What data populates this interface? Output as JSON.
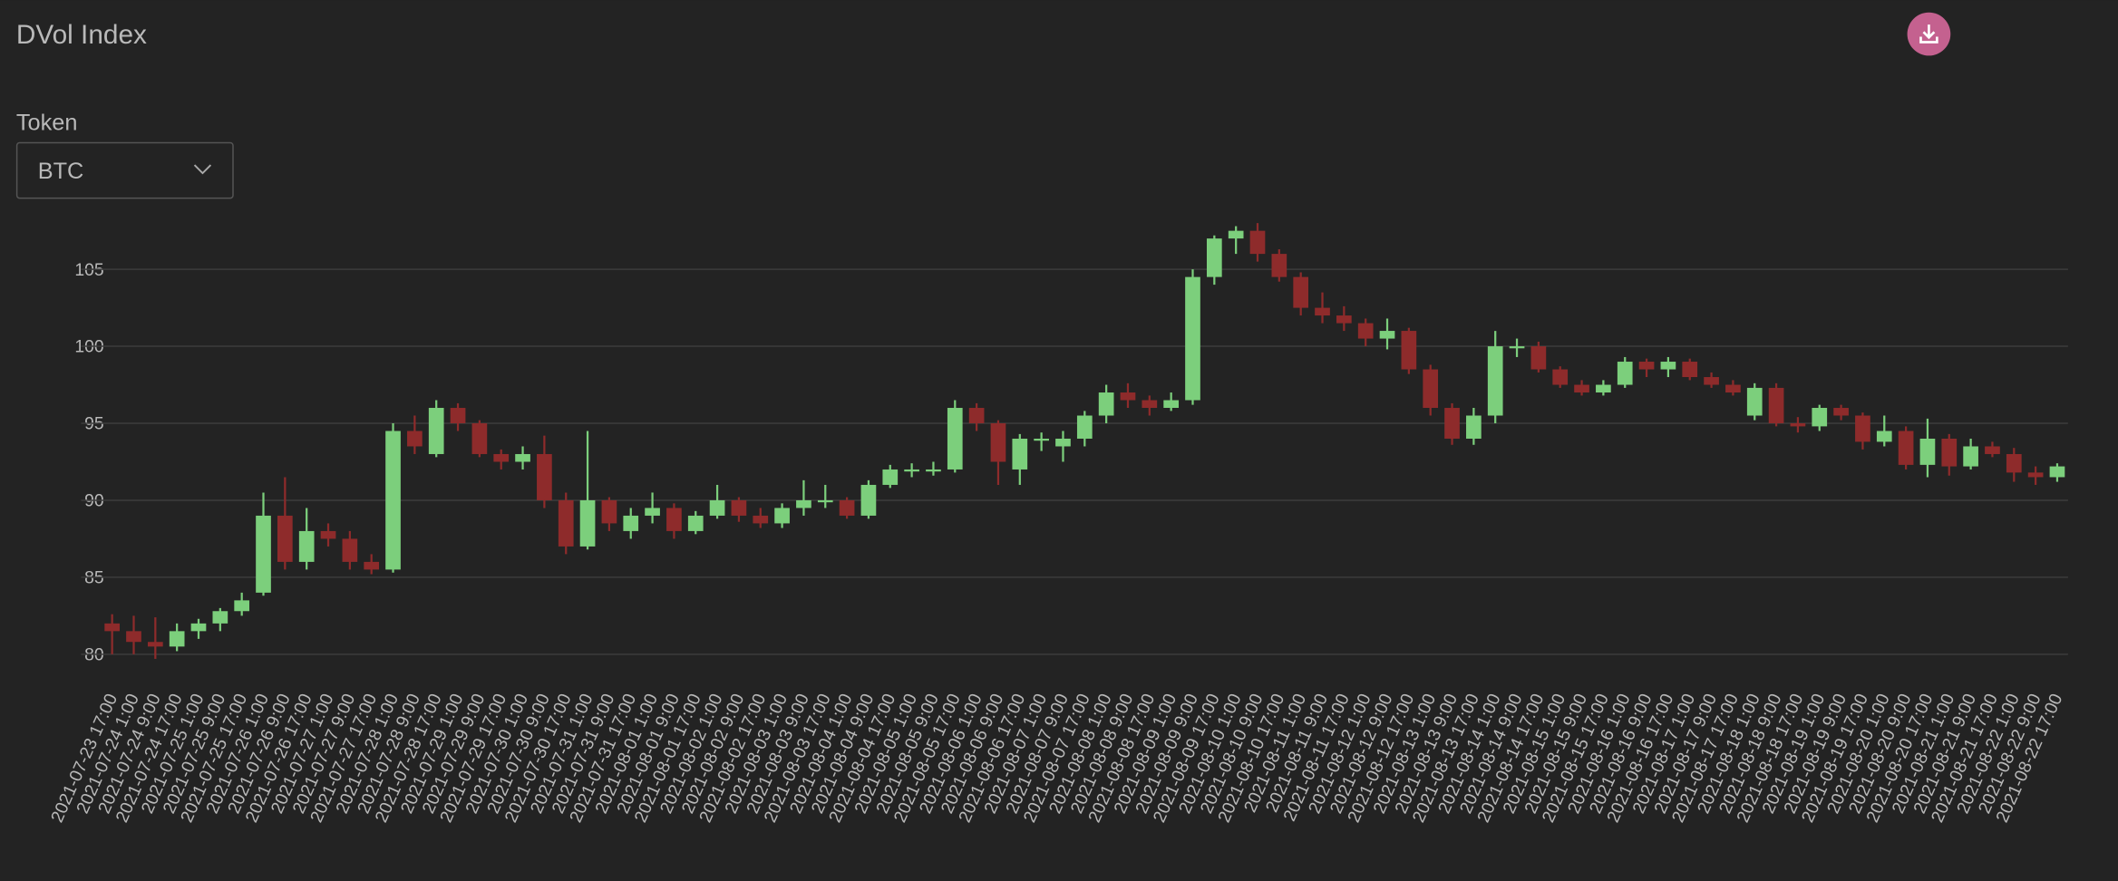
{
  "header": {
    "title": "DVol Index"
  },
  "controls": {
    "token_label": "Token",
    "token_value": "BTC"
  },
  "chart_data": {
    "type": "candlestick",
    "up_color": "#7ccf7c",
    "down_color": "#8e2b2b",
    "grid": true,
    "ylim": [
      79.5,
      108
    ],
    "yticks": [
      80,
      85,
      90,
      95,
      100,
      105
    ],
    "categories": [
      "2021-07-23 17:00",
      "2021-07-24 1:00",
      "2021-07-24 9:00",
      "2021-07-24 17:00",
      "2021-07-25 1:00",
      "2021-07-25 9:00",
      "2021-07-25 17:00",
      "2021-07-26 1:00",
      "2021-07-26 9:00",
      "2021-07-26 17:00",
      "2021-07-27 1:00",
      "2021-07-27 9:00",
      "2021-07-27 17:00",
      "2021-07-28 1:00",
      "2021-07-28 9:00",
      "2021-07-28 17:00",
      "2021-07-29 1:00",
      "2021-07-29 9:00",
      "2021-07-29 17:00",
      "2021-07-30 1:00",
      "2021-07-30 9:00",
      "2021-07-30 17:00",
      "2021-07-31 1:00",
      "2021-07-31 9:00",
      "2021-07-31 17:00",
      "2021-08-01 1:00",
      "2021-08-01 9:00",
      "2021-08-01 17:00",
      "2021-08-02 1:00",
      "2021-08-02 9:00",
      "2021-08-02 17:00",
      "2021-08-03 1:00",
      "2021-08-03 9:00",
      "2021-08-03 17:00",
      "2021-08-04 1:00",
      "2021-08-04 9:00",
      "2021-08-04 17:00",
      "2021-08-05 1:00",
      "2021-08-05 9:00",
      "2021-08-05 17:00",
      "2021-08-06 1:00",
      "2021-08-06 9:00",
      "2021-08-06 17:00",
      "2021-08-07 1:00",
      "2021-08-07 9:00",
      "2021-08-07 17:00",
      "2021-08-08 1:00",
      "2021-08-08 9:00",
      "2021-08-08 17:00",
      "2021-08-09 1:00",
      "2021-08-09 9:00",
      "2021-08-09 17:00",
      "2021-08-10 1:00",
      "2021-08-10 9:00",
      "2021-08-10 17:00",
      "2021-08-11 1:00",
      "2021-08-11 9:00",
      "2021-08-11 17:00",
      "2021-08-12 1:00",
      "2021-08-12 9:00",
      "2021-08-12 17:00",
      "2021-08-13 1:00",
      "2021-08-13 9:00",
      "2021-08-13 17:00",
      "2021-08-14 1:00",
      "2021-08-14 9:00",
      "2021-08-14 17:00",
      "2021-08-15 1:00",
      "2021-08-15 9:00",
      "2021-08-15 17:00",
      "2021-08-16 1:00",
      "2021-08-16 9:00",
      "2021-08-16 17:00",
      "2021-08-17 1:00",
      "2021-08-17 9:00",
      "2021-08-17 17:00",
      "2021-08-18 1:00",
      "2021-08-18 9:00",
      "2021-08-18 17:00",
      "2021-08-19 1:00",
      "2021-08-19 9:00",
      "2021-08-19 17:00",
      "2021-08-20 1:00",
      "2021-08-20 9:00",
      "2021-08-20 17:00",
      "2021-08-21 1:00",
      "2021-08-21 9:00",
      "2021-08-21 17:00",
      "2021-08-22 1:00",
      "2021-08-22 9:00",
      "2021-08-22 17:00"
    ],
    "ohlc": [
      [
        82,
        82.6,
        80,
        81.5
      ],
      [
        81.5,
        82.5,
        80,
        80.8
      ],
      [
        80.8,
        82.4,
        79.7,
        80.5
      ],
      [
        80.5,
        82,
        80.2,
        81.5
      ],
      [
        81.5,
        82.3,
        81,
        82
      ],
      [
        82,
        83,
        81.5,
        82.8
      ],
      [
        82.8,
        84,
        82.5,
        83.5
      ],
      [
        84,
        90.5,
        83.8,
        89
      ],
      [
        89,
        91.5,
        85.5,
        86
      ],
      [
        86,
        89.5,
        85.5,
        88
      ],
      [
        88,
        88.5,
        87,
        87.5
      ],
      [
        87.5,
        88,
        85.5,
        86
      ],
      [
        86,
        86.5,
        85.2,
        85.5
      ],
      [
        85.5,
        95,
        85.3,
        94.5
      ],
      [
        94.5,
        95.5,
        93,
        93.5
      ],
      [
        93,
        96.5,
        92.8,
        96
      ],
      [
        96,
        96.3,
        94.5,
        95
      ],
      [
        95,
        95.2,
        92.8,
        93
      ],
      [
        93,
        93.3,
        92,
        92.5
      ],
      [
        92.5,
        93.5,
        92,
        93
      ],
      [
        93,
        94.2,
        89.5,
        90
      ],
      [
        90,
        90.5,
        86.5,
        87
      ],
      [
        87,
        94.5,
        86.8,
        90
      ],
      [
        90,
        90.2,
        88,
        88.5
      ],
      [
        88,
        89.5,
        87.5,
        89
      ],
      [
        89,
        90.5,
        88.5,
        89.5
      ],
      [
        89.5,
        89.8,
        87.5,
        88
      ],
      [
        88,
        89.3,
        87.8,
        89
      ],
      [
        89,
        91,
        88.8,
        90
      ],
      [
        90,
        90.2,
        88.6,
        89
      ],
      [
        89,
        89.5,
        88.2,
        88.5
      ],
      [
        88.5,
        89.8,
        88.2,
        89.5
      ],
      [
        89.5,
        91.3,
        89,
        90
      ],
      [
        90,
        91,
        89.5,
        90
      ],
      [
        90,
        90.2,
        88.8,
        89
      ],
      [
        89,
        91.3,
        88.8,
        91
      ],
      [
        91,
        92.3,
        90.8,
        92
      ],
      [
        92,
        92.4,
        91.5,
        92
      ],
      [
        92,
        92.5,
        91.6,
        92
      ],
      [
        92,
        96.5,
        91.8,
        96
      ],
      [
        96,
        96.3,
        94.5,
        95
      ],
      [
        95,
        95.2,
        91,
        92.5
      ],
      [
        92,
        94.3,
        91,
        94
      ],
      [
        94,
        94.4,
        93.2,
        94
      ],
      [
        93.5,
        94.5,
        92.5,
        94
      ],
      [
        94,
        95.8,
        93.5,
        95.5
      ],
      [
        95.5,
        97.5,
        95,
        97
      ],
      [
        97,
        97.6,
        96,
        96.5
      ],
      [
        96.5,
        96.8,
        95.5,
        96
      ],
      [
        96,
        97,
        95.8,
        96.5
      ],
      [
        96.5,
        105,
        96.2,
        104.5
      ],
      [
        104.5,
        107.2,
        104,
        107
      ],
      [
        107,
        107.8,
        106,
        107.5
      ],
      [
        107.5,
        108,
        105.5,
        106
      ],
      [
        106,
        106.3,
        104.2,
        104.5
      ],
      [
        104.5,
        104.8,
        102,
        102.5
      ],
      [
        102.5,
        103.5,
        101.5,
        102
      ],
      [
        102,
        102.6,
        101,
        101.5
      ],
      [
        101.5,
        101.8,
        100,
        100.5
      ],
      [
        100.5,
        101.8,
        99.8,
        101
      ],
      [
        101,
        101.2,
        98.2,
        98.5
      ],
      [
        98.5,
        98.8,
        95.5,
        96
      ],
      [
        96,
        96.3,
        93.6,
        94
      ],
      [
        94,
        96,
        93.6,
        95.5
      ],
      [
        95.5,
        101,
        95,
        100
      ],
      [
        100,
        100.5,
        99.3,
        100
      ],
      [
        100,
        100.3,
        98.3,
        98.5
      ],
      [
        98.5,
        98.7,
        97.3,
        97.5
      ],
      [
        97.5,
        97.8,
        96.8,
        97
      ],
      [
        97,
        97.8,
        96.8,
        97.5
      ],
      [
        97.5,
        99.3,
        97.3,
        99
      ],
      [
        99,
        99.2,
        98,
        98.5
      ],
      [
        98.5,
        99.3,
        98,
        99
      ],
      [
        99,
        99.2,
        97.8,
        98
      ],
      [
        98,
        98.3,
        97.3,
        97.5
      ],
      [
        97.5,
        97.8,
        96.8,
        97
      ],
      [
        95.5,
        97.6,
        95.2,
        97.3
      ],
      [
        97.3,
        97.6,
        94.8,
        95
      ],
      [
        95,
        95.4,
        94.4,
        94.8
      ],
      [
        94.8,
        96.2,
        94.5,
        96
      ],
      [
        96,
        96.2,
        95.2,
        95.5
      ],
      [
        95.5,
        95.7,
        93.3,
        93.8
      ],
      [
        93.8,
        95.5,
        93.5,
        94.5
      ],
      [
        94.5,
        94.8,
        92,
        92.3
      ],
      [
        92.3,
        95.3,
        91.5,
        94
      ],
      [
        94,
        94.3,
        91.6,
        92.2
      ],
      [
        92.2,
        94,
        92,
        93.5
      ],
      [
        93.5,
        93.8,
        92.8,
        93
      ],
      [
        93,
        93.4,
        91.2,
        91.8
      ],
      [
        91.8,
        92.2,
        91,
        91.5
      ],
      [
        91.5,
        92.4,
        91.2,
        92.2
      ]
    ]
  }
}
